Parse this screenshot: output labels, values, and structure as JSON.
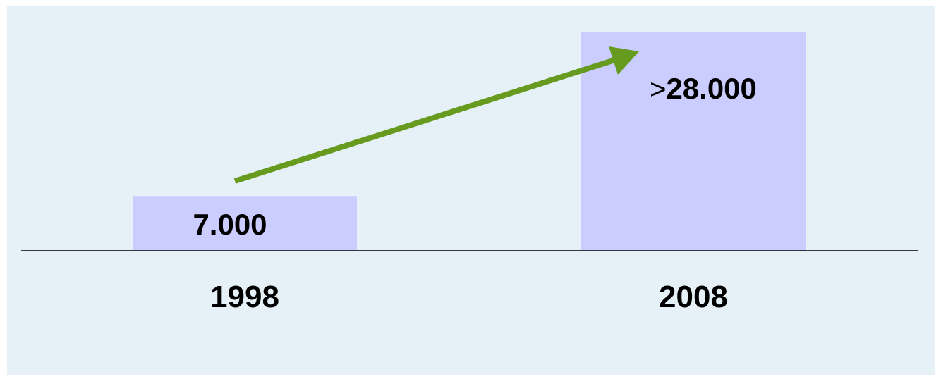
{
  "colors": {
    "panel_background": "#e5f0f7",
    "bar_fill": "#cccdff",
    "arrow": "#679b20",
    "axis": "#000000",
    "text": "#000000"
  },
  "chart_data": {
    "type": "bar",
    "categories": [
      "1998",
      "2008"
    ],
    "values": [
      7000,
      28000
    ],
    "data_labels": [
      "7.000",
      "28.000"
    ],
    "data_label_prefixes": [
      "",
      ">"
    ],
    "title": "",
    "xlabel": "",
    "ylabel": "",
    "ylim": [
      0,
      28000
    ],
    "grid": false,
    "legend": "none",
    "annotation": "arrow-increase"
  }
}
